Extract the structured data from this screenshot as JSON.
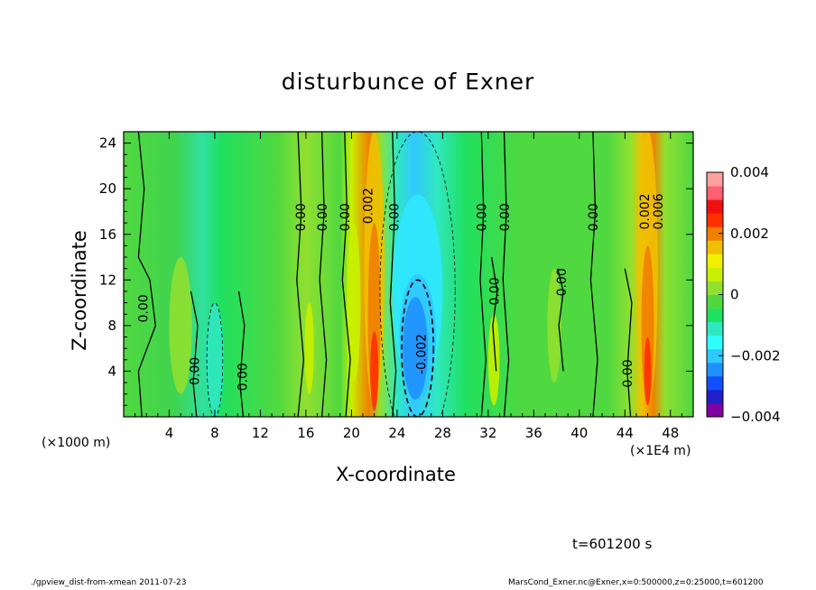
{
  "chart_data": {
    "type": "heatmap",
    "title": "disturbunce of Exner",
    "xlabel": "X-coordinate",
    "ylabel": "Z-coordinate",
    "x_unit": "(×1000 m)",
    "x_unit2": "(×1E4 m)",
    "xlim": [
      0,
      50
    ],
    "ylim": [
      0,
      25
    ],
    "x_ticks": [
      4,
      8,
      12,
      16,
      20,
      24,
      28,
      32,
      36,
      40,
      44,
      48
    ],
    "y_ticks": [
      4,
      8,
      12,
      16,
      20,
      24
    ],
    "colorbar": {
      "min": -0.004,
      "max": 0.004,
      "tick_values": [
        0.004,
        0.002,
        0,
        -0.002,
        -0.004
      ],
      "tick_labels": [
        "0.004",
        "0.002",
        "0",
        "−0.002",
        "−0.004"
      ],
      "colors": [
        "#8000a0",
        "#2020c8",
        "#1050ff",
        "#2090ff",
        "#30c8ff",
        "#30ffff",
        "#30e8c0",
        "#20e060",
        "#50d840",
        "#90e030",
        "#c8f000",
        "#f0f000",
        "#f0c000",
        "#f08000",
        "#ff3000",
        "#f01010",
        "#ff6070",
        "#ffa0a0"
      ]
    },
    "contour_labels": [
      {
        "text": "0.00",
        "x": 1.8,
        "z": 9.5
      },
      {
        "text": "0.00",
        "x": 6.3,
        "z": 4.0
      },
      {
        "text": "0.00",
        "x": 10.5,
        "z": 3.5
      },
      {
        "text": "0.00",
        "x": 15.6,
        "z": 17.5
      },
      {
        "text": "0.00",
        "x": 17.5,
        "z": 17.5
      },
      {
        "text": "0.00",
        "x": 19.5,
        "z": 17.5
      },
      {
        "text": "0.002",
        "x": 21.5,
        "z": 18.5
      },
      {
        "text": "0.00",
        "x": 23.8,
        "z": 17.5
      },
      {
        "text": "-0.002",
        "x": 26.2,
        "z": 5.5
      },
      {
        "text": "0.00",
        "x": 31.5,
        "z": 17.5
      },
      {
        "text": "0.00",
        "x": 33.5,
        "z": 17.5
      },
      {
        "text": "0.00",
        "x": 32.6,
        "z": 11.0
      },
      {
        "text": "0.00",
        "x": 38.5,
        "z": 11.8
      },
      {
        "text": "0.00",
        "x": 41.3,
        "z": 17.5
      },
      {
        "text": "0.00",
        "x": 44.3,
        "z": 3.8
      },
      {
        "text": "0.002",
        "x": 45.8,
        "z": 18.0
      },
      {
        "text": "0.006",
        "x": 47.0,
        "z": 18.0
      }
    ],
    "grid": false,
    "legend": "colorbar right"
  },
  "annotations": {
    "time": "t=601200 s",
    "footer_left": "./gpview_dist-from-xmean  2011-07-23",
    "footer_right": "MarsCond_Exner.nc@Exner,x=0:500000,z=0:25000,t=601200"
  }
}
